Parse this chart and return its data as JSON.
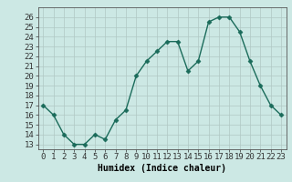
{
  "x": [
    0,
    1,
    2,
    3,
    4,
    5,
    6,
    7,
    8,
    9,
    10,
    11,
    12,
    13,
    14,
    15,
    16,
    17,
    18,
    19,
    20,
    21,
    22,
    23
  ],
  "y": [
    17,
    16,
    14,
    13,
    13,
    14,
    13.5,
    15.5,
    16.5,
    20,
    21.5,
    22.5,
    23.5,
    23.5,
    20.5,
    21.5,
    25.5,
    26,
    26,
    24.5,
    21.5,
    19,
    17,
    16
  ],
  "line_color": "#1a6b5a",
  "marker_color": "#1a6b5a",
  "bg_color": "#cce8e4",
  "grid_color": "#aaaaaa",
  "xlabel": "Humidex (Indice chaleur)",
  "ylim_min": 12.5,
  "ylim_max": 27,
  "xlim_min": -0.5,
  "xlim_max": 23.5,
  "yticks": [
    13,
    14,
    15,
    16,
    17,
    18,
    19,
    20,
    21,
    22,
    23,
    24,
    25,
    26
  ],
  "xtick_labels": [
    "0",
    "1",
    "2",
    "3",
    "4",
    "5",
    "6",
    "7",
    "8",
    "9",
    "10",
    "11",
    "12",
    "13",
    "14",
    "15",
    "16",
    "17",
    "18",
    "19",
    "20",
    "21",
    "22",
    "23"
  ],
  "xlabel_fontsize": 7,
  "tick_fontsize": 6.5,
  "line_width": 1.0,
  "marker_size": 2.5
}
